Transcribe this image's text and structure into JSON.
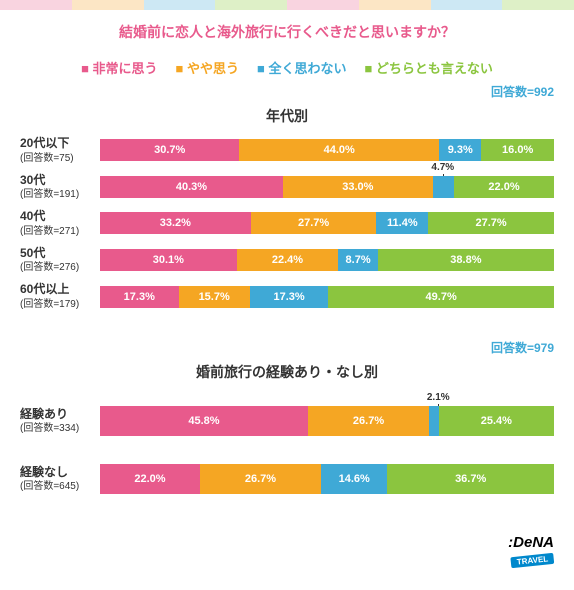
{
  "colors": {
    "pink": "#e85a8c",
    "orange": "#f5a623",
    "blue": "#3fa9d6",
    "green": "#8bc53f",
    "count_text": "#3fa9d6",
    "title_text": "#e85a8c"
  },
  "title": "結婚前に恋人と海外旅行に行くべきだと思いますか？",
  "legend": [
    {
      "label": "非常に思う",
      "color": "#e85a8c"
    },
    {
      "label": "やや思う",
      "color": "#f5a623"
    },
    {
      "label": "全く思わない",
      "color": "#3fa9d6"
    },
    {
      "label": "どちらとも言えない",
      "color": "#8bc53f"
    }
  ],
  "sections": [
    {
      "count_label": "回答数=992",
      "title": "年代別",
      "rows": [
        {
          "label": "20代以下",
          "sub": "(回答数=75)",
          "segs": [
            {
              "v": 30.7,
              "c": "#e85a8c",
              "t": "30.7%"
            },
            {
              "v": 44.0,
              "c": "#f5a623",
              "t": "44.0%"
            },
            {
              "v": 9.3,
              "c": "#3fa9d6",
              "t": "9.3%"
            },
            {
              "v": 16.0,
              "c": "#8bc53f",
              "t": "16.0%"
            }
          ]
        },
        {
          "label": "30代",
          "sub": "(回答数=191)",
          "callout": {
            "text": "4.7%",
            "pos": 73
          },
          "segs": [
            {
              "v": 40.3,
              "c": "#e85a8c",
              "t": "40.3%"
            },
            {
              "v": 33.0,
              "c": "#f5a623",
              "t": "33.0%"
            },
            {
              "v": 4.7,
              "c": "#3fa9d6",
              "t": ""
            },
            {
              "v": 22.0,
              "c": "#8bc53f",
              "t": "22.0%"
            }
          ]
        },
        {
          "label": "40代",
          "sub": "(回答数=271)",
          "segs": [
            {
              "v": 33.2,
              "c": "#e85a8c",
              "t": "33.2%"
            },
            {
              "v": 27.7,
              "c": "#f5a623",
              "t": "27.7%"
            },
            {
              "v": 11.4,
              "c": "#3fa9d6",
              "t": "11.4%"
            },
            {
              "v": 27.7,
              "c": "#8bc53f",
              "t": "27.7%"
            }
          ]
        },
        {
          "label": "50代",
          "sub": "(回答数=276)",
          "segs": [
            {
              "v": 30.1,
              "c": "#e85a8c",
              "t": "30.1%"
            },
            {
              "v": 22.4,
              "c": "#f5a623",
              "t": "22.4%"
            },
            {
              "v": 8.7,
              "c": "#3fa9d6",
              "t": "8.7%"
            },
            {
              "v": 38.8,
              "c": "#8bc53f",
              "t": "38.8%"
            }
          ]
        },
        {
          "label": "60代以上",
          "sub": "(回答数=179)",
          "segs": [
            {
              "v": 17.3,
              "c": "#e85a8c",
              "t": "17.3%"
            },
            {
              "v": 15.7,
              "c": "#f5a623",
              "t": "15.7%"
            },
            {
              "v": 17.3,
              "c": "#3fa9d6",
              "t": "17.3%"
            },
            {
              "v": 49.7,
              "c": "#8bc53f",
              "t": "49.7%"
            }
          ]
        }
      ]
    },
    {
      "count_label": "回答数=979",
      "title": "婚前旅行の経験あり・なし別",
      "rows": [
        {
          "label": "経験あり",
          "sub": "(回答数=334)",
          "tall": true,
          "callout": {
            "text": "2.1%",
            "pos": 72
          },
          "segs": [
            {
              "v": 45.8,
              "c": "#e85a8c",
              "t": "45.8%"
            },
            {
              "v": 26.7,
              "c": "#f5a623",
              "t": "26.7%"
            },
            {
              "v": 2.1,
              "c": "#3fa9d6",
              "t": ""
            },
            {
              "v": 25.4,
              "c": "#8bc53f",
              "t": "25.4%"
            }
          ]
        },
        {
          "label": "経験なし",
          "sub": "(回答数=645)",
          "tall": true,
          "segs": [
            {
              "v": 22.0,
              "c": "#e85a8c",
              "t": "22.0%"
            },
            {
              "v": 26.7,
              "c": "#f5a623",
              "t": "26.7%"
            },
            {
              "v": 14.6,
              "c": "#3fa9d6",
              "t": "14.6%"
            },
            {
              "v": 36.7,
              "c": "#8bc53f",
              "t": "36.7%"
            }
          ]
        }
      ]
    }
  ],
  "logo": ":DeNA",
  "logo_sub": "TRAVEL"
}
